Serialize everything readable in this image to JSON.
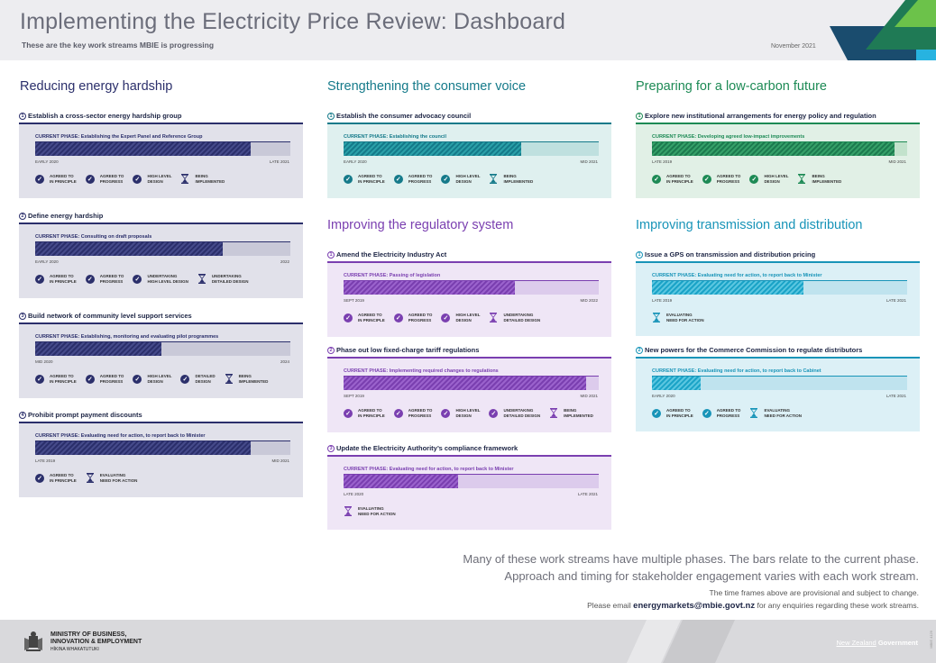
{
  "header": {
    "title": "Implementing the Electricity Price Review: Dashboard",
    "subtitle": "These are the key work streams MBIE is progressing",
    "date": "November 2021"
  },
  "colors": {
    "navy": "#2b2f6b",
    "teal": "#1a8a8a",
    "green": "#2e8b57",
    "purple": "#7a3fb0",
    "cyan": "#1aa3c7"
  },
  "sections": [
    {
      "title": "Reducing energy hardship",
      "color": "#2b2f6b"
    },
    {
      "title": "Strengthening the consumer voice",
      "color": "#157a8a"
    },
    {
      "title": "Preparing for a low-carbon future",
      "color": "#1d8a55"
    },
    {
      "title": "Improving the regulatory system",
      "color": "#7a3fb0"
    },
    {
      "title": "Improving transmission and distribution",
      "color": "#1894b8"
    }
  ],
  "cards": [
    {
      "num": "1",
      "title": "Establish a cross-sector energy hardship group",
      "phase": "CURRENT PHASE: Establishing the Expert Panel and Reference Group",
      "progress": 0.845,
      "start": "EARLY 2020",
      "end": "LATE 2021",
      "steps": [
        {
          "type": "check",
          "label": "AGREED TO\nIN PRINCIPLE"
        },
        {
          "type": "check",
          "label": "AGREED TO\nPROGRESS"
        },
        {
          "type": "check",
          "label": "HIGH LEVEL\nDESIGN"
        },
        {
          "type": "hourglass",
          "label": "BEING\nIMPLEMENTED"
        }
      ]
    },
    {
      "num": "2",
      "title": "Define energy hardship",
      "phase": "CURRENT PHASE: Consulting on draft proposals",
      "progress": 0.735,
      "start": "EARLY 2020",
      "end": "2022",
      "steps": [
        {
          "type": "check",
          "label": "AGREED TO\nIN PRINCIPLE"
        },
        {
          "type": "check",
          "label": "AGREED TO\nPROGRESS"
        },
        {
          "type": "check",
          "label": "UNDERTAKING\nHIGH LEVEL DESIGN"
        },
        {
          "type": "hourglass",
          "label": "UNDERTAKING\nDETAILED DESIGN"
        }
      ]
    },
    {
      "num": "3",
      "title": "Build network of community level support services",
      "phase": "CURRENT PHASE: Establishing, monitoring and evaluating pilot programmes",
      "progress": 0.495,
      "start": "MID 2020",
      "end": "2024",
      "steps": [
        {
          "type": "check",
          "label": "AGREED TO\nIN PRINCIPLE"
        },
        {
          "type": "check",
          "label": "AGREED TO\nPROGRESS"
        },
        {
          "type": "check",
          "label": "HIGH LEVEL\nDESIGN"
        },
        {
          "type": "check",
          "label": "DETAILED\nDESIGN"
        },
        {
          "type": "hourglass",
          "label": "BEING\nIMPLEMENTED"
        }
      ]
    },
    {
      "num": "4",
      "title": "Prohibit prompt payment discounts",
      "phase": "CURRENT PHASE: Evaluating need for action, to report back to Minister",
      "progress": 0.845,
      "start": "LATE 2019",
      "end": "MID 2021",
      "steps": [
        {
          "type": "check",
          "label": "AGREED TO\nIN PRINCIPLE"
        },
        {
          "type": "hourglass",
          "label": "EVALUATING\nNEED FOR ACTION"
        }
      ]
    },
    {
      "num": "1",
      "title": "Establish the consumer advocacy council",
      "phase": "CURRENT PHASE: Establishing the council",
      "progress": 0.695,
      "start": "EARLY 2020",
      "end": "MID 2021",
      "steps": [
        {
          "type": "check",
          "label": "AGREED TO\nIN PRINCIPLE"
        },
        {
          "type": "check",
          "label": "AGREED TO\nPROGRESS"
        },
        {
          "type": "check",
          "label": "HIGH LEVEL\nDESIGN"
        },
        {
          "type": "hourglass",
          "label": "BEING\nIMPLEMENTED"
        }
      ]
    },
    {
      "num": "1",
      "title": "Explore new institutional arrangements for energy policy and regulation",
      "phase": "CURRENT PHASE: Developing agreed low-impact improvements",
      "progress": 0.95,
      "start": "LATE 2019",
      "end": "MID 2021",
      "steps": [
        {
          "type": "check",
          "label": "AGREED TO\nIN PRINCIPLE"
        },
        {
          "type": "check",
          "label": "AGREED TO\nPROGRESS"
        },
        {
          "type": "check",
          "label": "HIGH LEVEL\nDESIGN"
        },
        {
          "type": "hourglass",
          "label": "BEING\nIMPLEMENTED"
        }
      ]
    },
    {
      "num": "1",
      "title": "Amend the Electricity Industry Act",
      "phase": "CURRENT PHASE: Passing of legislation",
      "progress": 0.67,
      "start": "SEPT 2019",
      "end": "MID 2022",
      "steps": [
        {
          "type": "check",
          "label": "AGREED TO\nIN PRINCIPLE"
        },
        {
          "type": "check",
          "label": "AGREED TO\nPROGRESS"
        },
        {
          "type": "check",
          "label": "HIGH LEVEL\nDESIGN"
        },
        {
          "type": "hourglass",
          "label": "UNDERTAKING\nDETAILED DESIGN"
        }
      ]
    },
    {
      "num": "2",
      "title": "Phase out low fixed-charge tariff regulations",
      "phase": "CURRENT PHASE: Implementing required changes to regulations",
      "progress": 0.95,
      "start": "SEPT 2019",
      "end": "MID 2021",
      "steps": [
        {
          "type": "check",
          "label": "AGREED TO\nIN PRINCIPLE"
        },
        {
          "type": "check",
          "label": "AGREED TO\nPROGRESS"
        },
        {
          "type": "check",
          "label": "HIGH LEVEL\nDESIGN"
        },
        {
          "type": "check",
          "label": "UNDERTAKING\nDETAILED DESIGN"
        },
        {
          "type": "hourglass",
          "label": "BEING\nIMPLEMENTED"
        }
      ]
    },
    {
      "num": "3",
      "title": "Update the Electricity Authority’s compliance framework",
      "phase": "CURRENT PHASE: Evaluating need for action, to report back to Minister",
      "progress": 0.45,
      "start": "LATE 2020",
      "end": "LATE 2021",
      "steps": [
        {
          "type": "hourglass",
          "label": "EVALUATING\nNEED FOR ACTION"
        }
      ]
    },
    {
      "num": "1",
      "title": "Issue a GPS on transmission and distribution pricing",
      "phase": "CURRENT PHASE: Evaluating need for action, to report back to Minister",
      "progress": 0.595,
      "start": "LATE 2019",
      "end": "LATE 2021",
      "steps": [
        {
          "type": "hourglass",
          "label": "EVALUATING\nNEED FOR ACTION"
        }
      ]
    },
    {
      "num": "2",
      "title": "New powers for the Commerce Commission to regulate distributors",
      "phase": "CURRENT PHASE: Evaluating need for action, to report back to Cabinet",
      "progress": 0.19,
      "start": "EARLY 2020",
      "end": "LATE 2021",
      "steps": [
        {
          "type": "check",
          "label": "AGREED TO\nIN PRINCIPLE"
        },
        {
          "type": "check",
          "label": "AGREED TO\nPROGRESS"
        },
        {
          "type": "hourglass",
          "label": "EVALUATING\nNEED FOR ACTION"
        }
      ]
    }
  ],
  "footer": {
    "line1": "Many of these work streams have multiple phases. The bars relate to the current phase.",
    "line2": "Approach and timing for stakeholder engagement varies with each work stream.",
    "line3": "The time frames above are provisional and subject to change.",
    "line4_pre": "Please email ",
    "email": "energymarkets@mbie.govt.nz",
    "line4_post": " for any enquiries regarding these work streams."
  },
  "bottom": {
    "ministry_line1": "MINISTRY OF BUSINESS,",
    "ministry_line2": "INNOVATION & EMPLOYMENT",
    "ministry_maori": "HĪKINA WHAKATUTUKI",
    "nz_gov_pre": "New Zealand",
    "nz_gov_post": "Government",
    "code": "MBIE 4129"
  }
}
